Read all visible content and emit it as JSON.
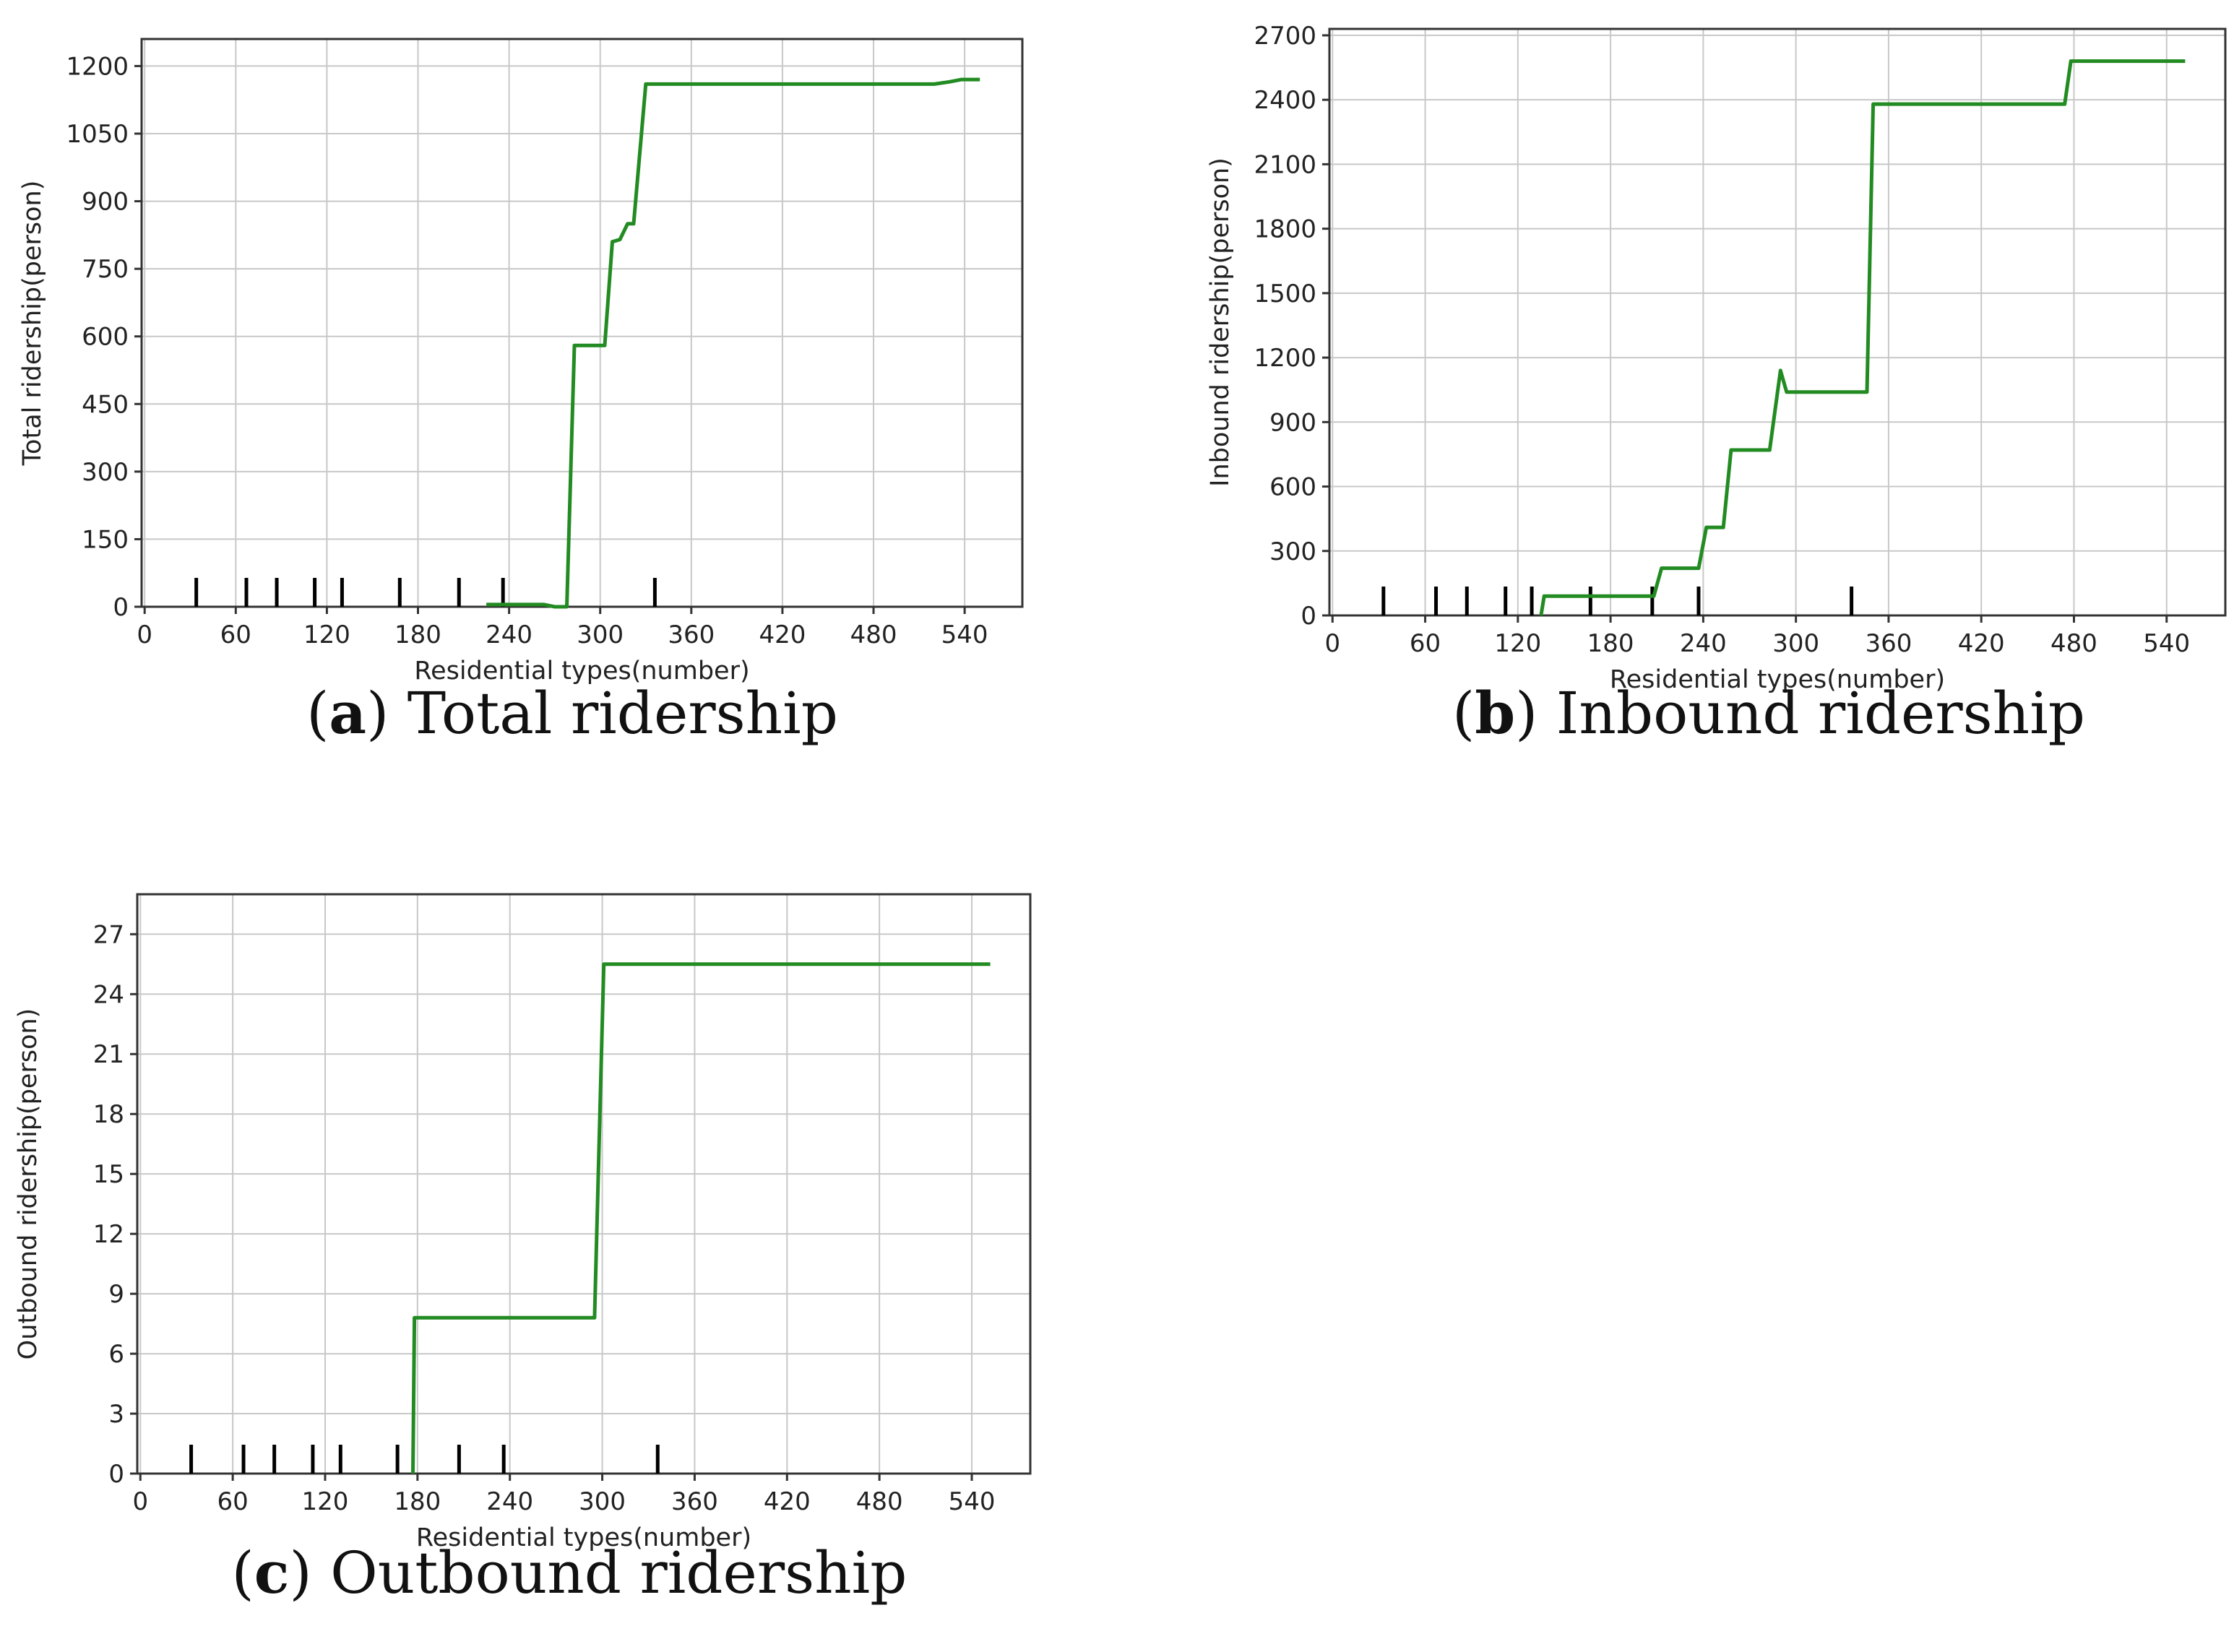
{
  "chart_data": [
    {
      "type": "line",
      "caption_letter": "a",
      "caption_text": "Total ridership",
      "xlabel": "Residential types(number)",
      "ylabel": "Total ridership(person)",
      "xlim": [
        -2,
        578
      ],
      "ylim": [
        0,
        1260
      ],
      "xticks": [
        0,
        60,
        120,
        180,
        240,
        300,
        360,
        420,
        480,
        540
      ],
      "yticks": [
        0,
        150,
        300,
        450,
        600,
        750,
        900,
        1050,
        1200
      ],
      "grid": true,
      "line_color": "#228b22",
      "series": [
        {
          "x": [
            225,
            233,
            263,
            270,
            278,
            283,
            303,
            308,
            313,
            318,
            322,
            330,
            334,
            340,
            440,
            520,
            530,
            538,
            550
          ],
          "y": [
            5,
            5,
            5,
            0,
            0,
            580,
            580,
            810,
            815,
            850,
            850,
            1160,
            1160,
            1160,
            1160,
            1160,
            1165,
            1170,
            1170
          ]
        }
      ],
      "rug": [
        34,
        67,
        87,
        112,
        130,
        168,
        207,
        236,
        336
      ]
    },
    {
      "type": "line",
      "caption_letter": "b",
      "caption_text": "Inbound ridership",
      "xlabel": "Residential types(number)",
      "ylabel": "Inbound ridership(person)",
      "xlim": [
        -2,
        578
      ],
      "ylim": [
        0,
        2730
      ],
      "xticks": [
        0,
        60,
        120,
        180,
        240,
        300,
        360,
        420,
        480,
        540
      ],
      "yticks": [
        0,
        300,
        600,
        900,
        1200,
        1500,
        1800,
        2100,
        2400,
        2700
      ],
      "grid": true,
      "line_color": "#228b22",
      "series": [
        {
          "x": [
            135,
            137,
            208,
            213,
            237,
            242,
            253,
            258,
            283,
            290,
            294,
            346,
            350,
            474,
            478,
            552
          ],
          "y": [
            0,
            90,
            90,
            220,
            220,
            410,
            410,
            770,
            770,
            1140,
            1040,
            1040,
            2380,
            2380,
            2580,
            2580
          ]
        }
      ],
      "rug": [
        33,
        67,
        87,
        112,
        129,
        167,
        207,
        237,
        336
      ]
    },
    {
      "type": "line",
      "caption_letter": "c",
      "caption_text": "Outbound ridership",
      "xlabel": "Residential types(number)",
      "ylabel": "Outbound ridership(person)",
      "xlim": [
        -2,
        578
      ],
      "ylim": [
        0,
        29
      ],
      "xticks": [
        0,
        60,
        120,
        180,
        240,
        300,
        360,
        420,
        480,
        540
      ],
      "yticks": [
        0,
        3,
        6,
        9,
        12,
        15,
        18,
        21,
        24,
        27
      ],
      "grid": true,
      "line_color": "#228b22",
      "series": [
        {
          "x": [
            177,
            178,
            295,
            301,
            552
          ],
          "y": [
            0,
            7.8,
            7.8,
            25.5,
            25.5
          ]
        }
      ],
      "rug": [
        33,
        67,
        87,
        112,
        130,
        167,
        207,
        236,
        336
      ]
    }
  ]
}
